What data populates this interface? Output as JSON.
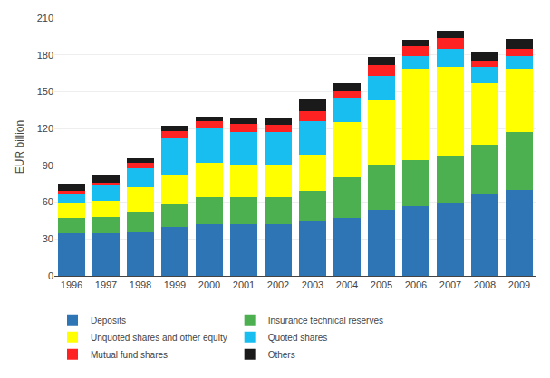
{
  "chart_data": {
    "type": "bar",
    "stacked": true,
    "categories": [
      "1996",
      "1997",
      "1998",
      "1999",
      "2000",
      "2001",
      "2002",
      "2003",
      "2004",
      "2005",
      "2006",
      "2007",
      "2008",
      "2009"
    ],
    "series": [
      {
        "name": "Deposits",
        "color": "#2E75B6",
        "values": [
          35,
          35,
          36,
          40,
          42,
          42,
          42,
          45,
          47,
          54,
          57,
          60,
          67,
          70
        ]
      },
      {
        "name": "Insurance technical reserves",
        "color": "#4CAF50",
        "values": [
          12,
          13,
          16,
          18,
          22,
          22,
          22,
          24,
          33,
          37,
          37,
          38,
          40,
          47
        ]
      },
      {
        "name": "Unquoted shares and other equity",
        "color": "#FFFF00",
        "values": [
          12,
          13,
          20,
          24,
          28,
          26,
          27,
          30,
          45,
          52,
          75,
          72,
          50,
          52
        ]
      },
      {
        "name": "Quoted shares",
        "color": "#17BEEF",
        "values": [
          8,
          13,
          16,
          30,
          28,
          27,
          26,
          27,
          20,
          20,
          10,
          15,
          13,
          10
        ]
      },
      {
        "name": "Mutual fund shares",
        "color": "#FF2222",
        "values": [
          2,
          2,
          4,
          6,
          6,
          7,
          6,
          8,
          5,
          9,
          8,
          9,
          5,
          6
        ]
      },
      {
        "name": "Others",
        "color": "#1A1A1A",
        "values": [
          6,
          6,
          4,
          4,
          4,
          5,
          5,
          10,
          7,
          6,
          5,
          6,
          8,
          8
        ]
      }
    ],
    "ylabel": "EUR billion",
    "ylim": [
      0,
      210
    ],
    "yticks": [
      0,
      30,
      60,
      90,
      120,
      150,
      180,
      210
    ],
    "grid": true,
    "legend": "bottom"
  }
}
